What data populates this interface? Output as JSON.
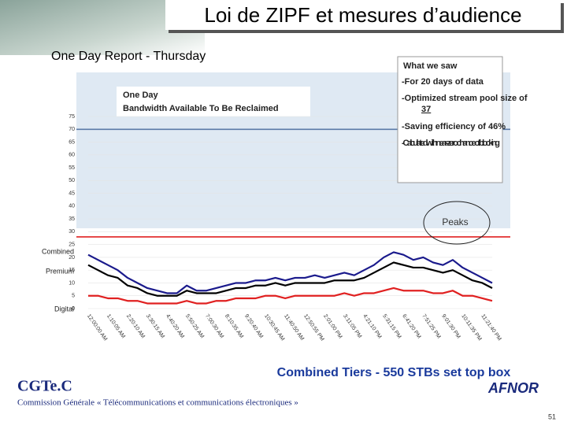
{
  "slide": {
    "title": "Loi de ZIPF et mesures d’audience",
    "report": "One Day Report - Thursday",
    "region_label": [
      "One Day",
      "Bandwidth Available To Be Reclaimed"
    ],
    "callout": {
      "heading": "What we saw",
      "line1": "-For 20 days of data",
      "line2_text": "-Optimized stream pool size of",
      "line2_value": "37",
      "line3": "-Saving efficiency of 46%",
      "line4": "- Calculated with near-zero chance of blocking"
    },
    "peaks": "Peaks",
    "caption": "Combined Tiers - 550 STBs set top box",
    "org": "CGTe.C",
    "org_full": "Commission Générale « Télécommunications et communications électroniques »",
    "afnor": "AFNOR",
    "page": "51"
  },
  "chart_data": {
    "type": "line",
    "categories": [
      "12:00:00 AM",
      null,
      "1:10:05 AM",
      null,
      "2:20:10 AM",
      null,
      "3:30:15 AM",
      null,
      "4:40:20 AM",
      null,
      "5:50:25 AM",
      null,
      "7:00:30 AM",
      null,
      "8:10:35 AM",
      null,
      "9:20:40 AM",
      null,
      "10:30:45 AM",
      null,
      "11:40:50 AM",
      null,
      "12:50:55 PM",
      null,
      "2:01:00 PM",
      null,
      "3:11:05 PM",
      null,
      "4:21:10 PM",
      null,
      "5:31:15 PM",
      null,
      "6:41:20 PM",
      null,
      "7:51:25 PM",
      null,
      "9:01:30 PM",
      null,
      "10:11:35 PM",
      null,
      "11:21:40 PM",
      null
    ],
    "series": [
      {
        "name": "Combined",
        "color": "#1a1a8c",
        "values": [
          21,
          19,
          17,
          15,
          12,
          10,
          8,
          7,
          6,
          6,
          9,
          7,
          7,
          8,
          9,
          10,
          10,
          11,
          11,
          12,
          11,
          12,
          12,
          13,
          12,
          13,
          14,
          13,
          15,
          17,
          20,
          22,
          21,
          19,
          20,
          18,
          17,
          19,
          16,
          14,
          12,
          10
        ]
      },
      {
        "name": "Premium",
        "color": "#000000",
        "values": [
          17,
          15,
          13,
          12,
          9,
          8,
          6,
          5,
          5,
          5,
          7,
          6,
          6,
          6,
          7,
          8,
          8,
          9,
          9,
          10,
          9,
          10,
          10,
          10,
          10,
          11,
          11,
          11,
          12,
          14,
          16,
          18,
          17,
          16,
          16,
          15,
          14,
          15,
          13,
          11,
          10,
          8
        ]
      },
      {
        "name": "Digital",
        "color": "#e02020",
        "values": [
          5,
          5,
          4,
          4,
          3,
          3,
          2,
          2,
          2,
          2,
          3,
          2,
          2,
          3,
          3,
          4,
          4,
          4,
          5,
          5,
          4,
          5,
          5,
          5,
          5,
          5,
          6,
          5,
          6,
          6,
          7,
          8,
          7,
          7,
          7,
          6,
          6,
          7,
          5,
          5,
          4,
          3
        ]
      }
    ],
    "ylim": [
      0,
      75
    ],
    "yticks": [
      0,
      5,
      10,
      15,
      20,
      25,
      30,
      35,
      40,
      45,
      50,
      55,
      60,
      65,
      70,
      75
    ],
    "grid": true,
    "reference_lines": [
      {
        "value": 70,
        "color": "#5b7ba8"
      },
      {
        "value": 28,
        "color": "#e02020"
      }
    ]
  }
}
